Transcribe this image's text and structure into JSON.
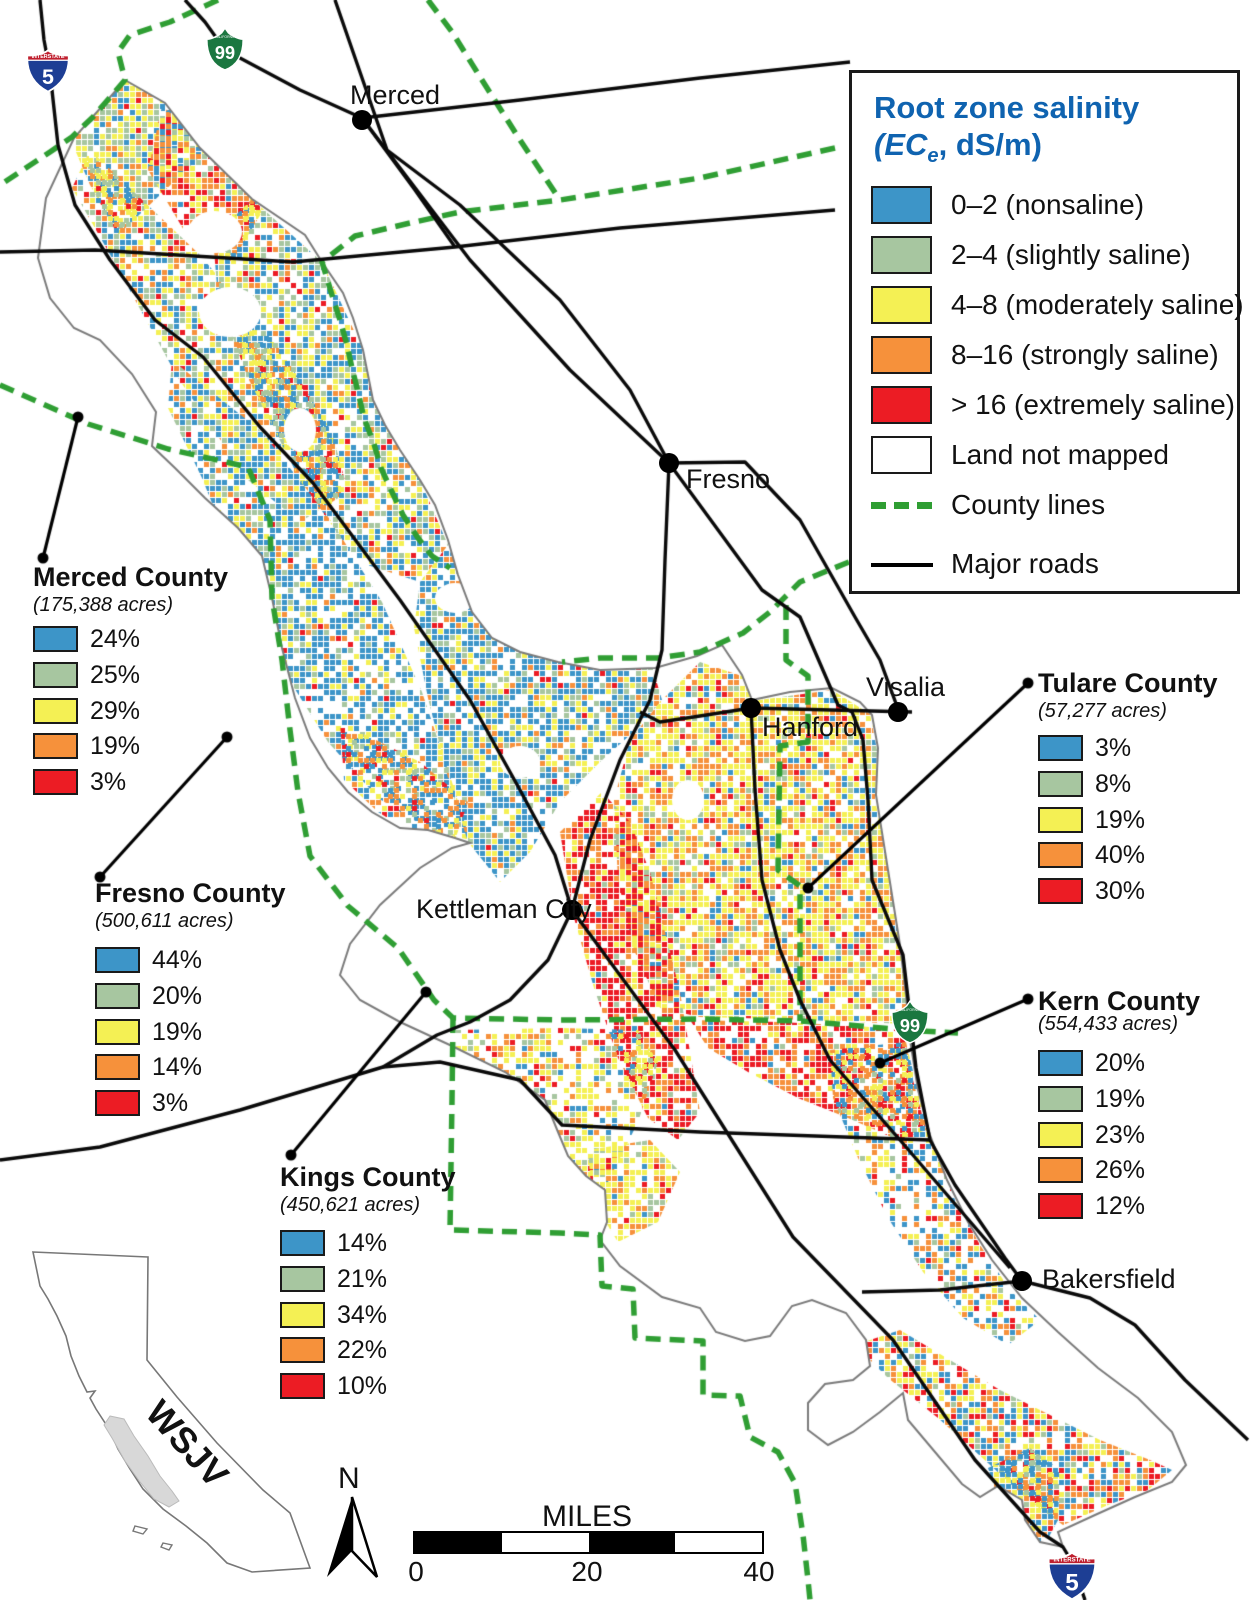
{
  "legend": {
    "title_line1": "Root zone salinity",
    "title2_pre": "(EC",
    "title2_sub": "e",
    "title2_rest": ", dS/m)",
    "title_color": "#0F63B0",
    "items": [
      {
        "label": "0–2 (nonsaline)",
        "color": "#3D95C8"
      },
      {
        "label": "2–4 (slightly saline)",
        "color": "#A7C6A0"
      },
      {
        "label": "4–8 (moderately saline)",
        "color": "#F4F054"
      },
      {
        "label": "8–16 (strongly saline)",
        "color": "#F6913B"
      },
      {
        "label": "> 16 (extremely saline)",
        "color": "#EC1C24"
      },
      {
        "label": "Land not mapped",
        "color": "#FFFFFF"
      }
    ],
    "county_lines_label": "County lines",
    "major_roads_label": "Major roads"
  },
  "counties": [
    {
      "name": "Merced County",
      "acres": "(175,388 acres)",
      "values": [
        "24%",
        "25%",
        "29%",
        "19%",
        "3%"
      ]
    },
    {
      "name": "Fresno County",
      "acres": "(500,611 acres)",
      "values": [
        "44%",
        "20%",
        "19%",
        "14%",
        "3%"
      ]
    },
    {
      "name": "Kings County",
      "acres": "(450,621 acres)",
      "values": [
        "14%",
        "21%",
        "34%",
        "22%",
        "10%"
      ]
    },
    {
      "name": "Tulare County",
      "acres": "(57,277 acres)",
      "values": [
        "3%",
        "8%",
        "19%",
        "40%",
        "30%"
      ]
    },
    {
      "name": "Kern County",
      "acres": "(554,433 acres)",
      "values": [
        "20%",
        "19%",
        "23%",
        "26%",
        "12%"
      ]
    }
  ],
  "cities": [
    "Merced",
    "Fresno",
    "Hanford",
    "Visalia",
    "Kettleman City",
    "Bakersfield"
  ],
  "shields": {
    "interstate_banner": "INTERSTATE",
    "california_banner": "CALIFORNIA",
    "i5": "5",
    "ca99": "99"
  },
  "scalebar": {
    "title": "MILES",
    "ticks": [
      "0",
      "20",
      "40"
    ]
  },
  "north_label": "N",
  "inset_label": "WSJV",
  "colors": {
    "county_line": "#2F9E33",
    "road": "#0a0a0a",
    "boundary": "#7b7b7b",
    "interstate_blue": "#1D3E94",
    "interstate_red": "#BF1F2E",
    "california_green": "#1B7740",
    "inset_fill": "#d8d8d8"
  }
}
